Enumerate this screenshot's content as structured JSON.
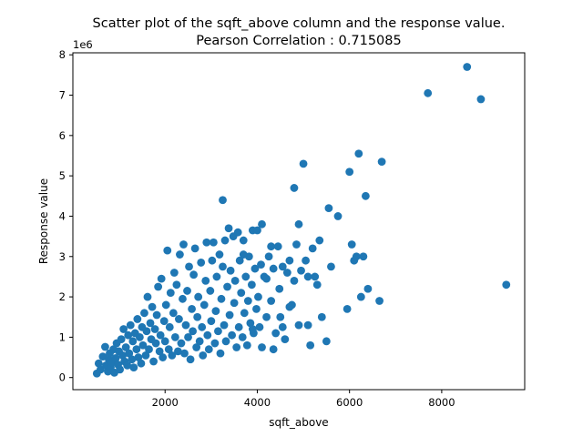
{
  "chart_data": {
    "type": "scatter",
    "title": "Scatter plot of the sqft_above column and the response value.",
    "subtitle": "Pearson Correlation : 0.715085",
    "xlabel": "sqft_above",
    "ylabel": "Response value",
    "y_offset_label": "1e6",
    "y_scale": 1000000,
    "xlim": [
      0,
      9800
    ],
    "ylim": [
      -300000,
      8050000
    ],
    "x_ticks": [
      2000,
      4000,
      6000,
      8000
    ],
    "x_tick_labels": [
      "2000",
      "4000",
      "6000",
      "8000"
    ],
    "y_ticks": [
      0,
      1000000,
      2000000,
      3000000,
      4000000,
      5000000,
      6000000,
      7000000,
      8000000
    ],
    "y_tick_labels": [
      "0",
      "1",
      "2",
      "3",
      "4",
      "5",
      "6",
      "7",
      "8"
    ],
    "grid": false,
    "marker": "circle",
    "color": "#1f77b4",
    "series": [
      {
        "name": "",
        "points": [
          [
            520,
            100000
          ],
          [
            560,
            350000
          ],
          [
            600,
            200000
          ],
          [
            650,
            520000
          ],
          [
            700,
            760000
          ],
          [
            720,
            300000
          ],
          [
            760,
            150000
          ],
          [
            780,
            450000
          ],
          [
            800,
            600000
          ],
          [
            820,
            250000
          ],
          [
            850,
            380000
          ],
          [
            880,
            700000
          ],
          [
            900,
            120000
          ],
          [
            930,
            480000
          ],
          [
            950,
            850000
          ],
          [
            980,
            320000
          ],
          [
            1000,
            650000
          ],
          [
            1020,
            200000
          ],
          [
            1050,
            950000
          ],
          [
            1080,
            550000
          ],
          [
            1100,
            1200000
          ],
          [
            1120,
            400000
          ],
          [
            1150,
            750000
          ],
          [
            1180,
            300000
          ],
          [
            1200,
            1050000
          ],
          [
            1220,
            600000
          ],
          [
            1250,
            1300000
          ],
          [
            1280,
            450000
          ],
          [
            1300,
            900000
          ],
          [
            1320,
            250000
          ],
          [
            1350,
            1100000
          ],
          [
            1380,
            700000
          ],
          [
            1400,
            1450000
          ],
          [
            1420,
            500000
          ],
          [
            1450,
            1000000
          ],
          [
            1480,
            350000
          ],
          [
            1500,
            1250000
          ],
          [
            1520,
            800000
          ],
          [
            1550,
            1600000
          ],
          [
            1580,
            550000
          ],
          [
            1600,
            1150000
          ],
          [
            1620,
            2000000
          ],
          [
            1650,
            700000
          ],
          [
            1680,
            1350000
          ],
          [
            1700,
            950000
          ],
          [
            1720,
            1750000
          ],
          [
            1750,
            400000
          ],
          [
            1780,
            1200000
          ],
          [
            1800,
            850000
          ],
          [
            1820,
            1550000
          ],
          [
            1850,
            2250000
          ],
          [
            1880,
            650000
          ],
          [
            1900,
            1050000
          ],
          [
            1920,
            2450000
          ],
          [
            1950,
            500000
          ],
          [
            1980,
            1400000
          ],
          [
            2000,
            900000
          ],
          [
            2020,
            1800000
          ],
          [
            2050,
            3150000
          ],
          [
            2080,
            700000
          ],
          [
            2100,
            1250000
          ],
          [
            2120,
            2100000
          ],
          [
            2150,
            550000
          ],
          [
            2180,
            1600000
          ],
          [
            2200,
            2600000
          ],
          [
            2220,
            1000000
          ],
          [
            2250,
            2300000
          ],
          [
            2280,
            650000
          ],
          [
            2300,
            1450000
          ],
          [
            2320,
            3050000
          ],
          [
            2350,
            850000
          ],
          [
            2380,
            1950000
          ],
          [
            2400,
            3300000
          ],
          [
            2420,
            600000
          ],
          [
            2450,
            1300000
          ],
          [
            2480,
            2150000
          ],
          [
            2500,
            1000000
          ],
          [
            2520,
            2750000
          ],
          [
            2550,
            450000
          ],
          [
            2580,
            1700000
          ],
          [
            2600,
            1150000
          ],
          [
            2620,
            2550000
          ],
          [
            2650,
            3200000
          ],
          [
            2680,
            750000
          ],
          [
            2700,
            1500000
          ],
          [
            2720,
            2000000
          ],
          [
            2750,
            900000
          ],
          [
            2780,
            2850000
          ],
          [
            2800,
            1250000
          ],
          [
            2820,
            550000
          ],
          [
            2850,
            1800000
          ],
          [
            2880,
            2400000
          ],
          [
            2900,
            3350000
          ],
          [
            2920,
            1050000
          ],
          [
            2950,
            700000
          ],
          [
            2980,
            2150000
          ],
          [
            3000,
            1400000
          ],
          [
            3020,
            2900000
          ],
          [
            3050,
            3350000
          ],
          [
            3080,
            850000
          ],
          [
            3100,
            1650000
          ],
          [
            3120,
            2500000
          ],
          [
            3150,
            1150000
          ],
          [
            3180,
            3050000
          ],
          [
            3200,
            600000
          ],
          [
            3220,
            1950000
          ],
          [
            3250,
            2750000
          ],
          [
            3280,
            1300000
          ],
          [
            3300,
            3400000
          ],
          [
            3320,
            900000
          ],
          [
            3350,
            2250000
          ],
          [
            3380,
            3700000
          ],
          [
            3400,
            1550000
          ],
          [
            3420,
            2650000
          ],
          [
            3450,
            1050000
          ],
          [
            3480,
            3500000
          ],
          [
            3500,
            1850000
          ],
          [
            3520,
            2400000
          ],
          [
            3550,
            750000
          ],
          [
            3580,
            3600000
          ],
          [
            3600,
            1250000
          ],
          [
            3620,
            2900000
          ],
          [
            3650,
            2100000
          ],
          [
            3680,
            1000000
          ],
          [
            3700,
            3400000
          ],
          [
            3720,
            1600000
          ],
          [
            3750,
            2500000
          ],
          [
            3780,
            800000
          ],
          [
            3800,
            1900000
          ],
          [
            3820,
            3000000
          ],
          [
            3850,
            1350000
          ],
          [
            3880,
            2300000
          ],
          [
            3900,
            3650000
          ],
          [
            3920,
            1100000
          ],
          [
            3950,
            2700000
          ],
          [
            3980,
            1700000
          ],
          [
            4000,
            3650000
          ],
          [
            4020,
            2000000
          ],
          [
            4050,
            1250000
          ],
          [
            4080,
            2800000
          ],
          [
            4100,
            750000
          ],
          [
            4150,
            2500000
          ],
          [
            4200,
            1500000
          ],
          [
            4250,
            3000000
          ],
          [
            4300,
            1900000
          ],
          [
            4350,
            2700000
          ],
          [
            4400,
            1100000
          ],
          [
            4450,
            3250000
          ],
          [
            4480,
            2200000
          ],
          [
            4500,
            1500000
          ],
          [
            4550,
            2750000
          ],
          [
            4600,
            950000
          ],
          [
            4650,
            2600000
          ],
          [
            4700,
            2900000
          ],
          [
            4750,
            1800000
          ],
          [
            4800,
            2400000
          ],
          [
            4850,
            3300000
          ],
          [
            4900,
            1300000
          ],
          [
            4950,
            2650000
          ],
          [
            4100,
            3800000
          ],
          [
            4900,
            3800000
          ],
          [
            4800,
            4700000
          ],
          [
            5000,
            5300000
          ],
          [
            5050,
            2900000
          ],
          [
            5100,
            2500000
          ],
          [
            5150,
            800000
          ],
          [
            5200,
            3200000
          ],
          [
            5250,
            2500000
          ],
          [
            5300,
            2300000
          ],
          [
            5400,
            1500000
          ],
          [
            5500,
            900000
          ],
          [
            5600,
            2750000
          ],
          [
            5550,
            4200000
          ],
          [
            5750,
            4000000
          ],
          [
            5950,
            1700000
          ],
          [
            6000,
            5100000
          ],
          [
            6050,
            3300000
          ],
          [
            6100,
            2900000
          ],
          [
            6150,
            3000000
          ],
          [
            6200,
            5550000
          ],
          [
            6250,
            2000000
          ],
          [
            6300,
            3000000
          ],
          [
            6350,
            4500000
          ],
          [
            6400,
            2200000
          ],
          [
            6650,
            1900000
          ],
          [
            6700,
            5350000
          ],
          [
            7700,
            7050000
          ],
          [
            8550,
            7700000
          ],
          [
            8850,
            6900000
          ],
          [
            9400,
            2300000
          ],
          [
            3250,
            4400000
          ],
          [
            4300,
            3250000
          ],
          [
            3700,
            3050000
          ],
          [
            5100,
            1300000
          ],
          [
            5350,
            3400000
          ],
          [
            4350,
            700000
          ],
          [
            4700,
            1750000
          ],
          [
            4550,
            1250000
          ],
          [
            3900,
            1200000
          ],
          [
            4200,
            2450000
          ]
        ]
      }
    ]
  }
}
